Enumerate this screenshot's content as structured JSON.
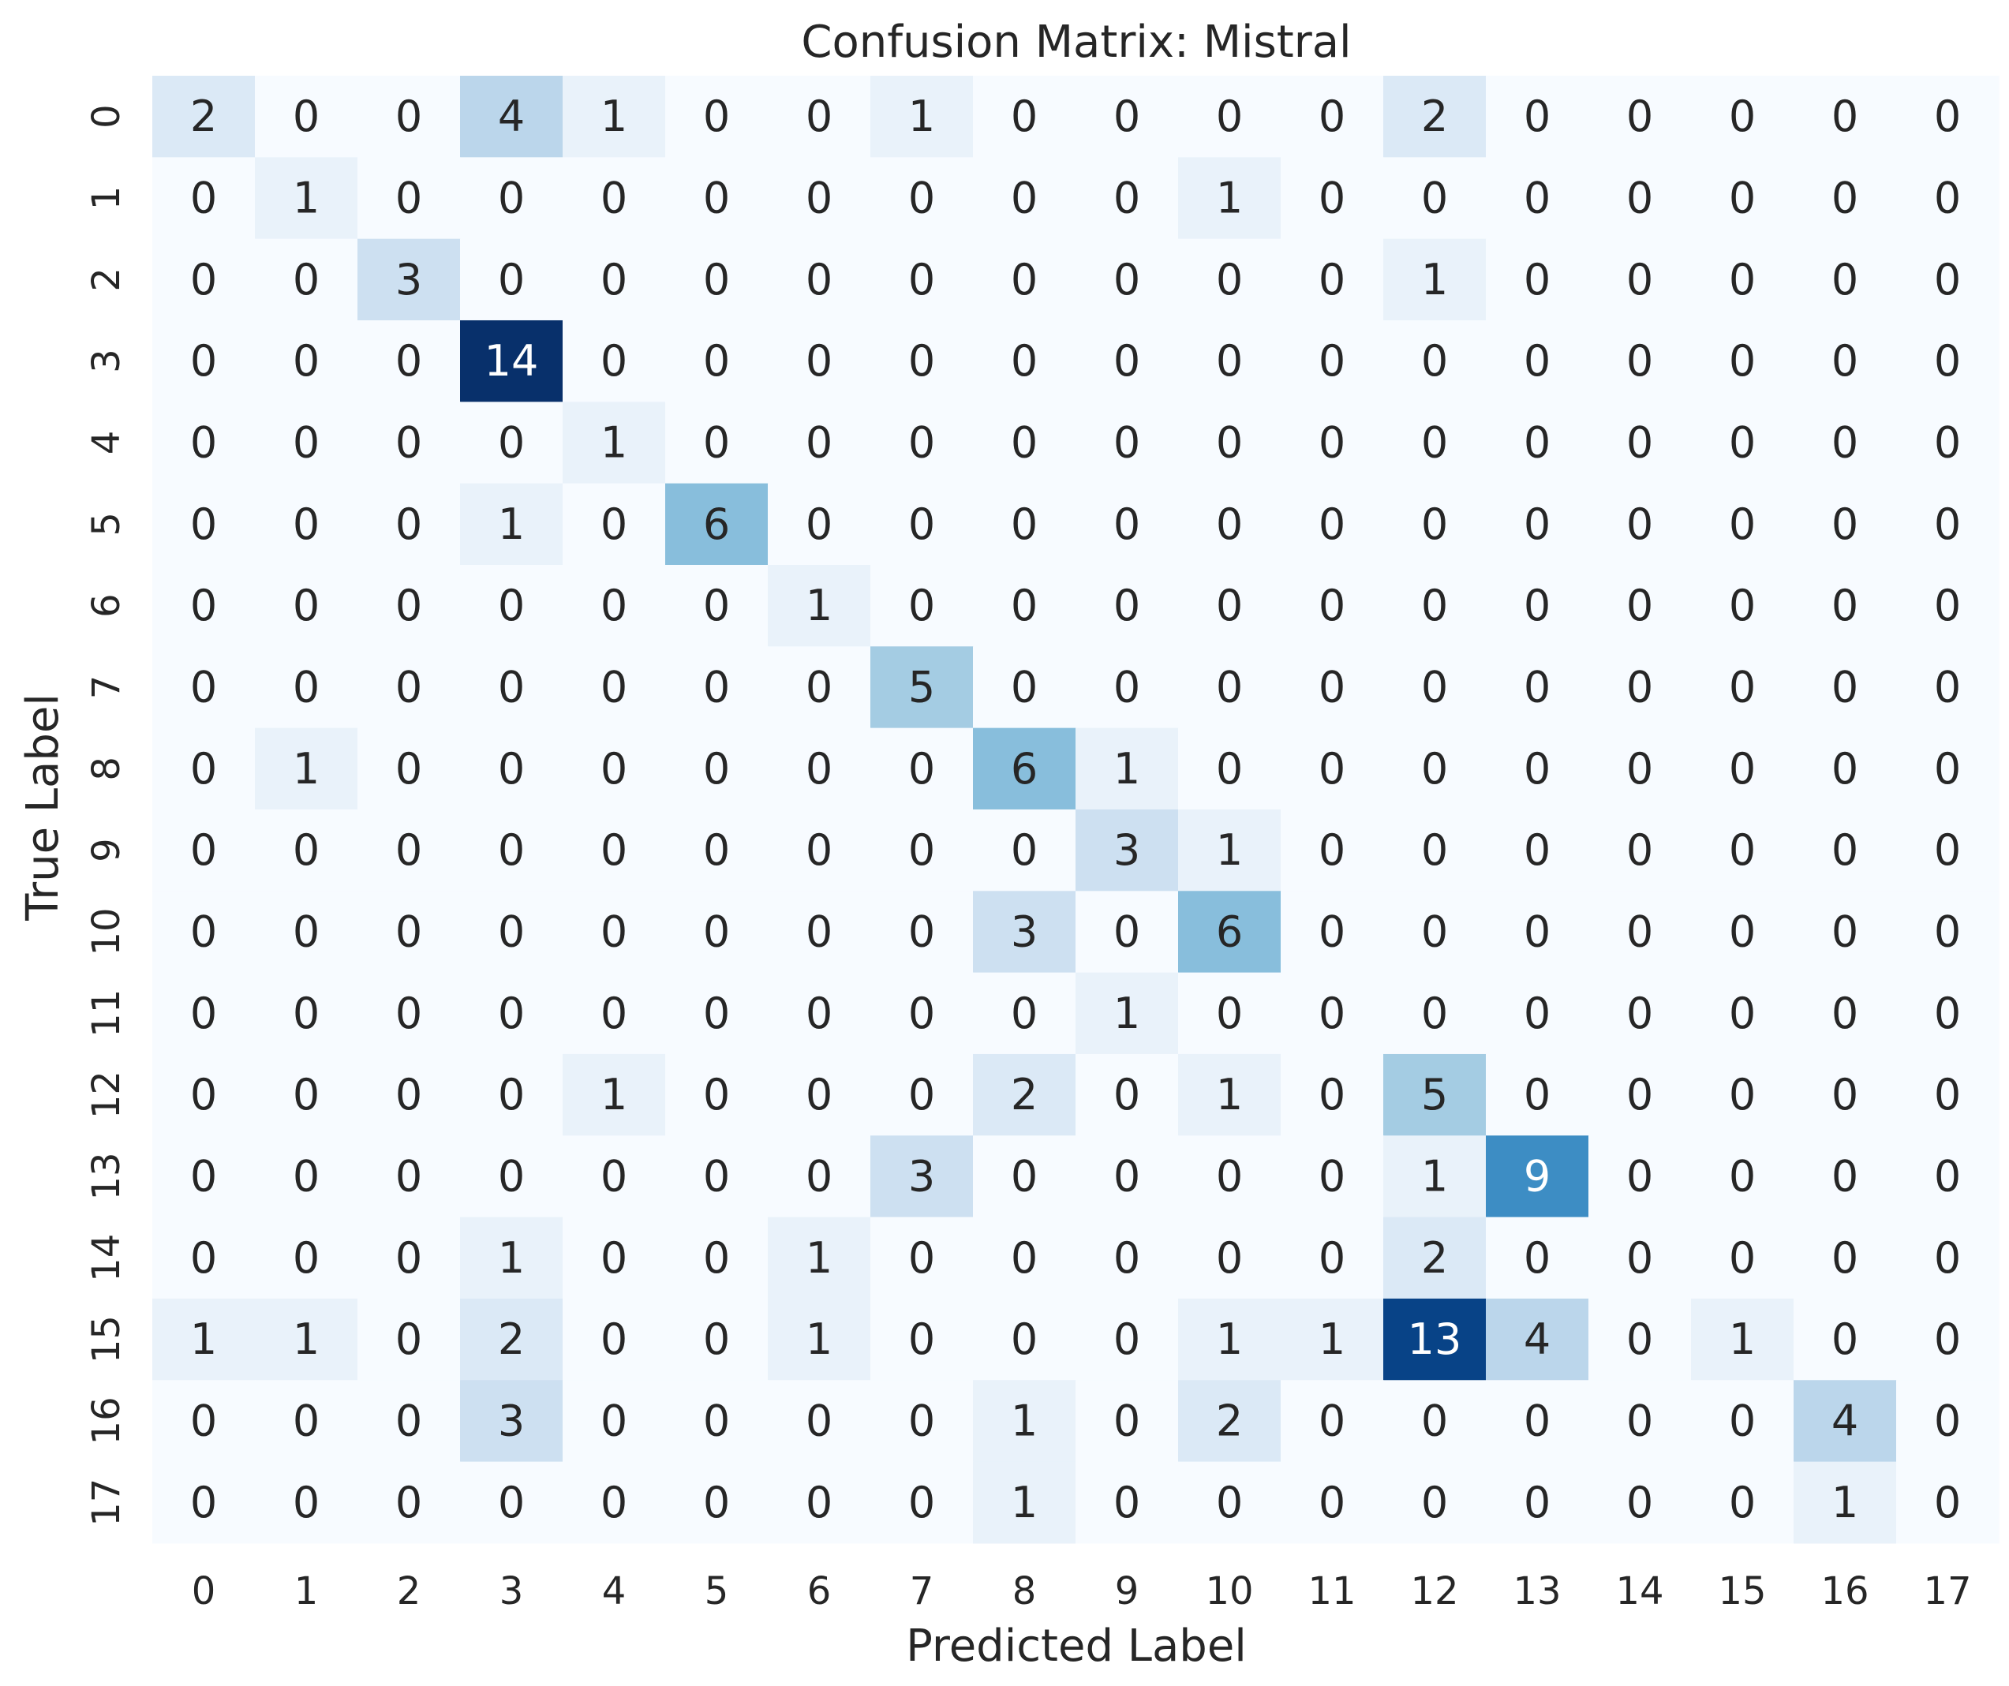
{
  "chart_data": {
    "type": "heatmap",
    "title": "Confusion Matrix: Mistral",
    "xlabel": "Predicted Label",
    "ylabel": "True Label",
    "x_categories": [
      "0",
      "1",
      "2",
      "3",
      "4",
      "5",
      "6",
      "7",
      "8",
      "9",
      "10",
      "11",
      "12",
      "13",
      "14",
      "15",
      "16",
      "17"
    ],
    "y_categories": [
      "0",
      "1",
      "2",
      "3",
      "4",
      "5",
      "6",
      "7",
      "8",
      "9",
      "10",
      "11",
      "12",
      "13",
      "14",
      "15",
      "16",
      "17"
    ],
    "values": [
      [
        2,
        0,
        0,
        4,
        1,
        0,
        0,
        1,
        0,
        0,
        0,
        0,
        2,
        0,
        0,
        0,
        0,
        0
      ],
      [
        0,
        1,
        0,
        0,
        0,
        0,
        0,
        0,
        0,
        0,
        1,
        0,
        0,
        0,
        0,
        0,
        0,
        0
      ],
      [
        0,
        0,
        3,
        0,
        0,
        0,
        0,
        0,
        0,
        0,
        0,
        0,
        1,
        0,
        0,
        0,
        0,
        0
      ],
      [
        0,
        0,
        0,
        14,
        0,
        0,
        0,
        0,
        0,
        0,
        0,
        0,
        0,
        0,
        0,
        0,
        0,
        0
      ],
      [
        0,
        0,
        0,
        0,
        1,
        0,
        0,
        0,
        0,
        0,
        0,
        0,
        0,
        0,
        0,
        0,
        0,
        0
      ],
      [
        0,
        0,
        0,
        1,
        0,
        6,
        0,
        0,
        0,
        0,
        0,
        0,
        0,
        0,
        0,
        0,
        0,
        0
      ],
      [
        0,
        0,
        0,
        0,
        0,
        0,
        1,
        0,
        0,
        0,
        0,
        0,
        0,
        0,
        0,
        0,
        0,
        0
      ],
      [
        0,
        0,
        0,
        0,
        0,
        0,
        0,
        5,
        0,
        0,
        0,
        0,
        0,
        0,
        0,
        0,
        0,
        0
      ],
      [
        0,
        1,
        0,
        0,
        0,
        0,
        0,
        0,
        6,
        1,
        0,
        0,
        0,
        0,
        0,
        0,
        0,
        0
      ],
      [
        0,
        0,
        0,
        0,
        0,
        0,
        0,
        0,
        0,
        3,
        1,
        0,
        0,
        0,
        0,
        0,
        0,
        0
      ],
      [
        0,
        0,
        0,
        0,
        0,
        0,
        0,
        0,
        3,
        0,
        6,
        0,
        0,
        0,
        0,
        0,
        0,
        0
      ],
      [
        0,
        0,
        0,
        0,
        0,
        0,
        0,
        0,
        0,
        1,
        0,
        0,
        0,
        0,
        0,
        0,
        0,
        0
      ],
      [
        0,
        0,
        0,
        0,
        1,
        0,
        0,
        0,
        2,
        0,
        1,
        0,
        5,
        0,
        0,
        0,
        0,
        0
      ],
      [
        0,
        0,
        0,
        0,
        0,
        0,
        0,
        3,
        0,
        0,
        0,
        0,
        1,
        9,
        0,
        0,
        0,
        0
      ],
      [
        0,
        0,
        0,
        1,
        0,
        0,
        1,
        0,
        0,
        0,
        0,
        0,
        2,
        0,
        0,
        0,
        0,
        0
      ],
      [
        1,
        1,
        0,
        2,
        0,
        0,
        1,
        0,
        0,
        0,
        1,
        1,
        13,
        4,
        0,
        1,
        0,
        0
      ],
      [
        0,
        0,
        0,
        3,
        0,
        0,
        0,
        0,
        1,
        0,
        2,
        0,
        0,
        0,
        0,
        0,
        4,
        0
      ],
      [
        0,
        0,
        0,
        0,
        0,
        0,
        0,
        0,
        1,
        0,
        0,
        0,
        0,
        0,
        0,
        0,
        1,
        0
      ]
    ],
    "colormap": "Blues",
    "color_range": [
      0,
      14
    ],
    "colorbar": false,
    "grid": false
  }
}
